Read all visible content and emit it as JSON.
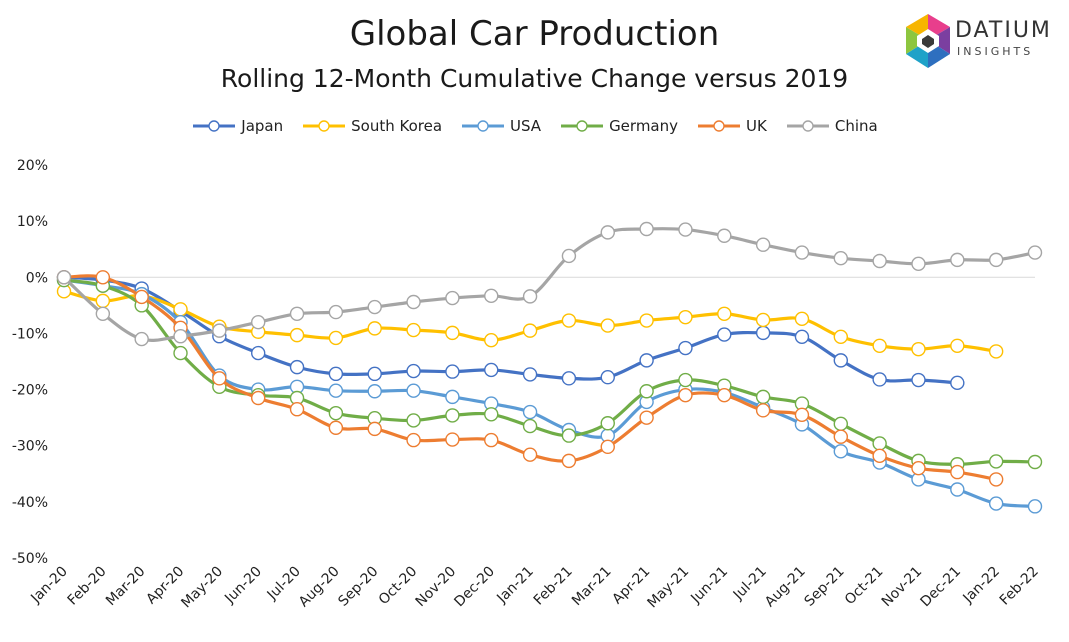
{
  "logo": {
    "name": "DATIUM",
    "tagline": "INSIGHTS"
  },
  "chart_data": {
    "type": "line",
    "title": "Global Car Production",
    "subtitle": "Rolling 12-Month Cumulative Change versus 2019",
    "categories": [
      "Jan-20",
      "Feb-20",
      "Mar-20",
      "Apr-20",
      "May-20",
      "Jun-20",
      "Jul-20",
      "Aug-20",
      "Sep-20",
      "Oct-20",
      "Nov-20",
      "Dec-20",
      "Jan-21",
      "Feb-21",
      "Mar-21",
      "Apr-21",
      "May-21",
      "Jun-21",
      "Jul-21",
      "Aug-21",
      "Sep-21",
      "Oct-21",
      "Nov-21",
      "Dec-21",
      "Jan-22",
      "Feb-22"
    ],
    "ylim": [
      -50,
      20
    ],
    "yticks": [
      20,
      10,
      0,
      -10,
      -20,
      -30,
      -40,
      -50
    ],
    "ytick_labels": [
      "20%",
      "10%",
      "0%",
      "-10%",
      "-20%",
      "-30%",
      "-40%",
      "-50%"
    ],
    "grid": false,
    "legend_position": "top",
    "series": [
      {
        "name": "Japan",
        "color": "#4472C4",
        "values": [
          0,
          -0.5,
          -2,
          -6,
          -10.5,
          -13.5,
          -16,
          -17.2,
          -17.2,
          -16.7,
          -16.8,
          -16.5,
          -17.3,
          -18,
          -17.8,
          -14.8,
          -12.6,
          -10.2,
          -9.9,
          -10.6,
          -14.8,
          -18.2,
          -18.3,
          -18.8,
          null,
          null
        ]
      },
      {
        "name": "South Korea",
        "color": "#FFC000",
        "values": [
          -2.5,
          -4.2,
          -3.3,
          -5.7,
          -8.8,
          -9.7,
          -10.3,
          -10.8,
          -9.1,
          -9.4,
          -9.9,
          -11.2,
          -9.5,
          -7.7,
          -8.6,
          -7.7,
          -7.1,
          -6.5,
          -7.6,
          -7.4,
          -10.6,
          -12.2,
          -12.8,
          -12.2,
          -13.2,
          null
        ]
      },
      {
        "name": "USA",
        "color": "#5B9BD5",
        "values": [
          -0.5,
          -1.5,
          -3,
          -8,
          -17.5,
          -20,
          -19.5,
          -20.2,
          -20.3,
          -20.2,
          -21.3,
          -22.5,
          -24,
          -27.2,
          -28.2,
          -22.2,
          -20,
          -20.5,
          -23.2,
          -26.2,
          -31,
          -33,
          -36,
          -37.8,
          -40.3,
          -40.8
        ]
      },
      {
        "name": "Germany",
        "color": "#70AD47",
        "values": [
          -0.5,
          -1.5,
          -5,
          -13.5,
          -19.5,
          -21,
          -21.5,
          -24.2,
          -25.1,
          -25.5,
          -24.6,
          -24.4,
          -26.5,
          -28.2,
          -26,
          -20.3,
          -18.3,
          -19.3,
          -21.3,
          -22.5,
          -26.1,
          -29.6,
          -32.7,
          -33.3,
          -32.8,
          -32.9
        ]
      },
      {
        "name": "UK",
        "color": "#ED7D31",
        "values": [
          0,
          0,
          -3.5,
          -9,
          -18,
          -21.5,
          -23.5,
          -26.8,
          -27,
          -29,
          -28.9,
          -29,
          -31.6,
          -32.7,
          -30.2,
          -25,
          -21,
          -21,
          -23.7,
          -24.5,
          -28.4,
          -31.8,
          -34,
          -34.7,
          -36,
          null
        ]
      },
      {
        "name": "China",
        "color": "#A5A5A5",
        "values": [
          0,
          -6.5,
          -11,
          -10.5,
          -9.5,
          -8,
          -6.5,
          -6.2,
          -5.3,
          -4.4,
          -3.7,
          -3.3,
          -3.4,
          3.8,
          8,
          8.6,
          8.5,
          7.4,
          5.8,
          4.4,
          3.4,
          2.9,
          2.4,
          3.1,
          3.1,
          4.4
        ]
      }
    ]
  }
}
